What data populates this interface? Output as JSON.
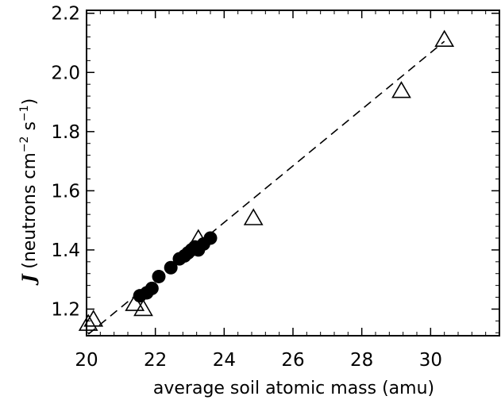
{
  "chart_data": {
    "type": "scatter",
    "xlabel": "average soil atomic mass (amu)",
    "ylabel": {
      "symbol": "J",
      "open": " (neutrons cm",
      "exp1": "−2",
      "mid": " s",
      "exp2": "−1",
      "close": ")"
    },
    "xlim": [
      20,
      32
    ],
    "ylim": [
      1.11,
      2.21
    ],
    "xticks": [
      20,
      22,
      24,
      26,
      28,
      30
    ],
    "xtick_labels": [
      "20",
      "22",
      "24",
      "26",
      "28",
      "30"
    ],
    "yticks": [
      1.2,
      1.4,
      1.6,
      1.8,
      2.0,
      2.2
    ],
    "ytick_labels": [
      "1.2",
      "1.4",
      "1.6",
      "1.8",
      "2.0",
      "2.2"
    ],
    "grid": false,
    "fit_line": {
      "style": "dashed",
      "x": [
        20.05,
        30.4
      ],
      "y": [
        1.115,
        2.105
      ]
    },
    "series": [
      {
        "marker": "open-triangle",
        "x": [
          20.05,
          20.2,
          21.4,
          21.65,
          23.25,
          24.85,
          29.15,
          30.4
        ],
        "y": [
          1.148,
          1.162,
          1.215,
          1.198,
          1.435,
          1.505,
          1.935,
          2.108
        ]
      },
      {
        "marker": "filled-circle",
        "x": [
          21.55,
          21.75,
          21.9,
          22.1,
          22.45,
          22.7,
          22.85,
          22.95,
          23.05,
          23.15,
          23.25,
          23.4,
          23.6
        ],
        "y": [
          1.245,
          1.255,
          1.27,
          1.31,
          1.34,
          1.37,
          1.38,
          1.39,
          1.4,
          1.41,
          1.4,
          1.42,
          1.44
        ]
      }
    ]
  }
}
